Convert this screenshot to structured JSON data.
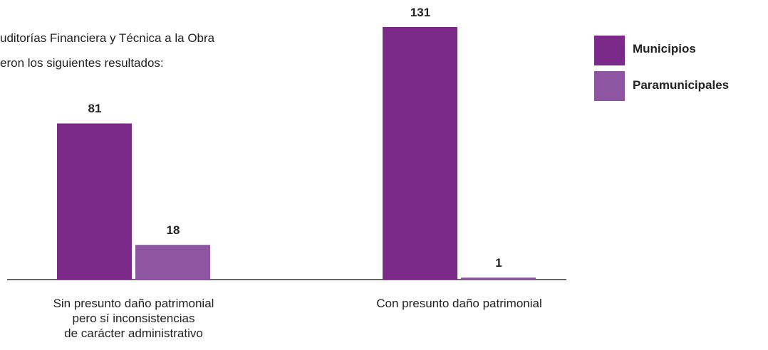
{
  "chart_data": {
    "type": "bar",
    "intro": [
      "uditorías Financiera y Técnica a la Obra",
      "eron los siguientes resultados:"
    ],
    "categories": [
      "Sin presunto daño patrimonial\npero sí inconsistencias\nde carácter administrativo",
      "Con presunto daño patrimonial"
    ],
    "series": [
      {
        "name": "Municipios",
        "color": "#7b2a8a",
        "values": [
          81,
          131
        ]
      },
      {
        "name": "Paramunicipales",
        "color": "#8e55a0",
        "values": [
          18,
          1
        ]
      }
    ],
    "legend": "top-right"
  }
}
